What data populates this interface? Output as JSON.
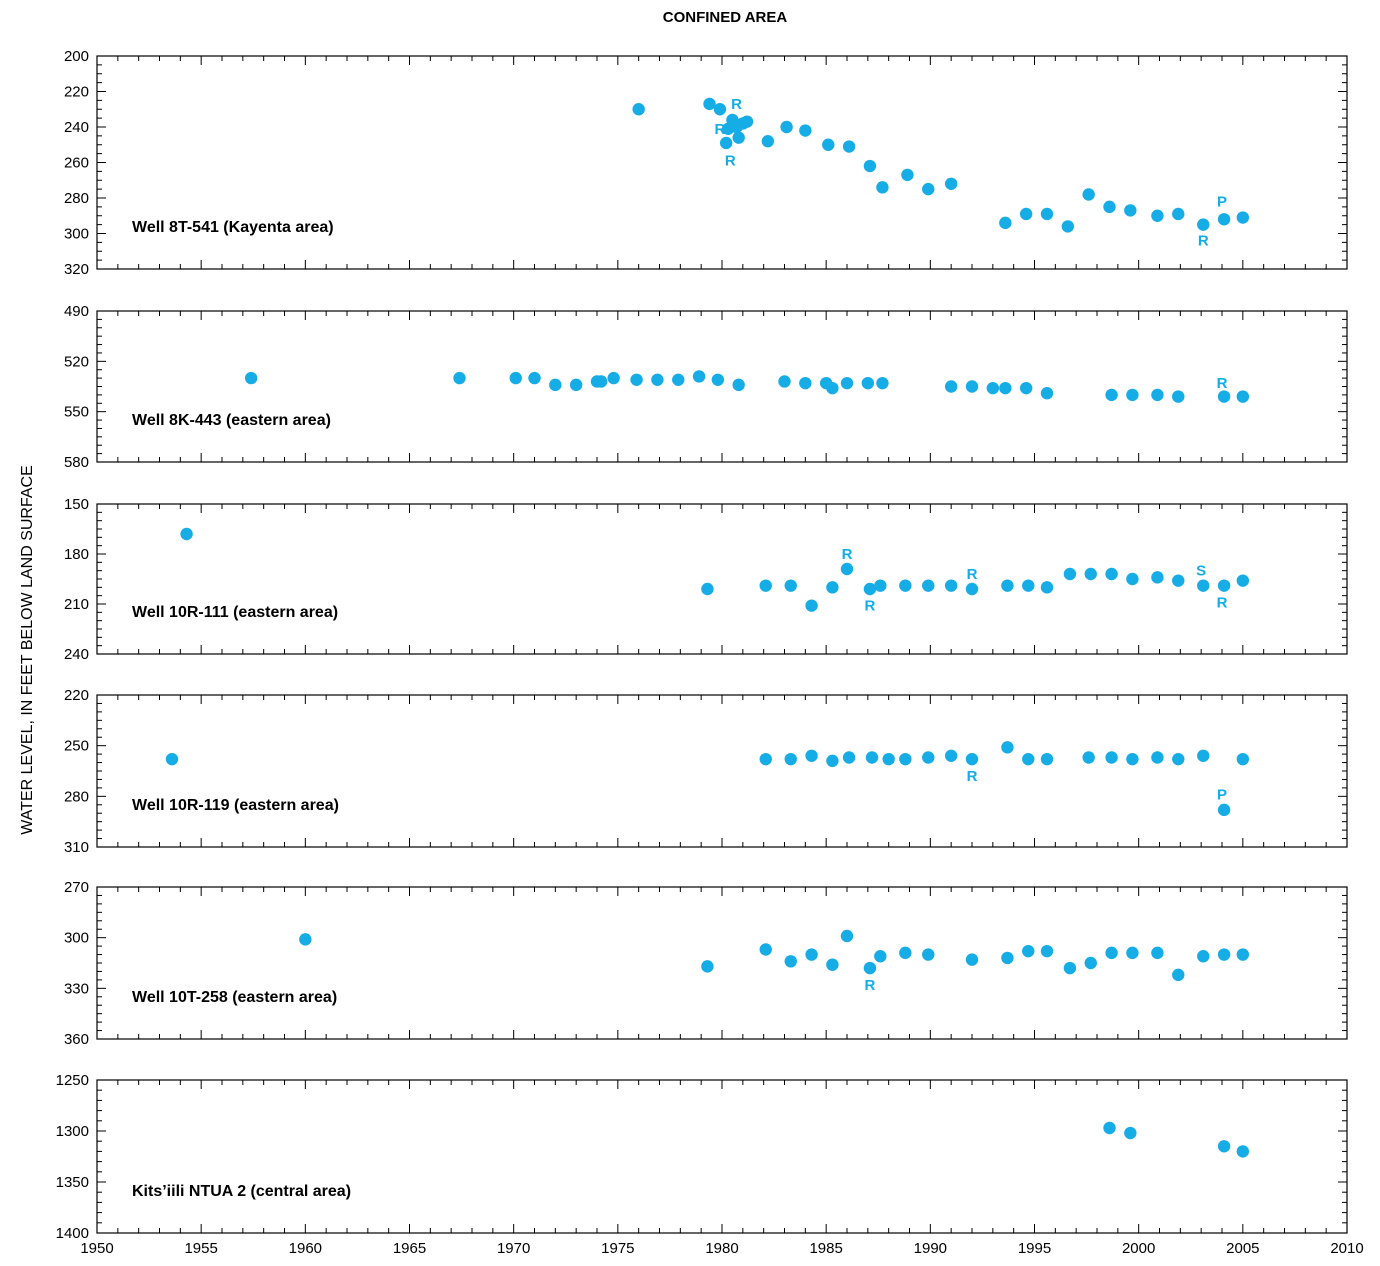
{
  "chart_data": {
    "type": "scatter",
    "title": "CONFINED AREA",
    "ylabel": "WATER LEVEL, IN FEET BELOW LAND SURFACE",
    "xlabel": "",
    "xlim": [
      1950,
      2010
    ],
    "xticks": [
      1950,
      1955,
      1960,
      1965,
      1970,
      1975,
      1980,
      1985,
      1990,
      1995,
      2000,
      2005,
      2010
    ],
    "xminor_step": 1,
    "y_inverted": true,
    "grid": false,
    "marker_color": "#16ADE6",
    "annotation_color": "#16ADE6",
    "panels": [
      {
        "label": "Well 8T-541 (Kayenta area)",
        "ylim": [
          200,
          320
        ],
        "yticks": [
          200,
          220,
          240,
          260,
          280,
          300,
          320
        ],
        "yminor_step": 5,
        "points": [
          [
            1976.0,
            230
          ],
          [
            1979.4,
            227
          ],
          [
            1979.9,
            230
          ],
          [
            1980.3,
            241
          ],
          [
            1980.5,
            236
          ],
          [
            1980.2,
            249
          ],
          [
            1980.8,
            246
          ],
          [
            1980.7,
            240
          ],
          [
            1981.0,
            238
          ],
          [
            1981.2,
            237
          ],
          [
            1982.2,
            248
          ],
          [
            1983.1,
            240
          ],
          [
            1984.0,
            242
          ],
          [
            1985.1,
            250
          ],
          [
            1986.1,
            251
          ],
          [
            1987.1,
            262
          ],
          [
            1987.7,
            274
          ],
          [
            1988.9,
            267
          ],
          [
            1989.9,
            275
          ],
          [
            1991.0,
            272
          ],
          [
            1993.6,
            294
          ],
          [
            1994.6,
            289
          ],
          [
            1995.6,
            289
          ],
          [
            1996.6,
            296
          ],
          [
            1997.6,
            278
          ],
          [
            1998.6,
            285
          ],
          [
            1999.6,
            287
          ],
          [
            2000.9,
            290
          ],
          [
            2001.9,
            289
          ],
          [
            2003.1,
            295
          ],
          [
            2004.1,
            292
          ],
          [
            2005.0,
            291
          ]
        ],
        "annotations": [
          {
            "text": "R",
            "x": 1980.7,
            "y": 227
          },
          {
            "text": "R",
            "x": 1979.9,
            "y": 241
          },
          {
            "text": "R",
            "x": 1980.4,
            "y": 259
          },
          {
            "text": "P",
            "x": 2004.0,
            "y": 282
          },
          {
            "text": "R",
            "x": 2003.1,
            "y": 304
          }
        ]
      },
      {
        "label": "Well 8K-443 (eastern area)",
        "ylim": [
          490,
          580
        ],
        "yticks": [
          490,
          520,
          550,
          580
        ],
        "yminor_step": 5,
        "points": [
          [
            1957.4,
            530
          ],
          [
            1967.4,
            530
          ],
          [
            1970.1,
            530
          ],
          [
            1971.0,
            530
          ],
          [
            1972.0,
            534
          ],
          [
            1973.0,
            534
          ],
          [
            1974.0,
            532
          ],
          [
            1974.2,
            532
          ],
          [
            1974.8,
            530
          ],
          [
            1975.9,
            531
          ],
          [
            1976.9,
            531
          ],
          [
            1977.9,
            531
          ],
          [
            1978.9,
            529
          ],
          [
            1979.8,
            531
          ],
          [
            1980.8,
            534
          ],
          [
            1983.0,
            532
          ],
          [
            1984.0,
            533
          ],
          [
            1985.0,
            533
          ],
          [
            1985.3,
            536
          ],
          [
            1986.0,
            533
          ],
          [
            1987.0,
            533
          ],
          [
            1987.7,
            533
          ],
          [
            1991.0,
            535
          ],
          [
            1992.0,
            535
          ],
          [
            1993.0,
            536
          ],
          [
            1993.6,
            536
          ],
          [
            1994.6,
            536
          ],
          [
            1995.6,
            539
          ],
          [
            1998.7,
            540
          ],
          [
            1999.7,
            540
          ],
          [
            2000.9,
            540
          ],
          [
            2001.9,
            541
          ],
          [
            2004.1,
            541
          ],
          [
            2005.0,
            541
          ]
        ],
        "annotations": [
          {
            "text": "R",
            "x": 2004.0,
            "y": 533
          }
        ]
      },
      {
        "label": "Well 10R-111 (eastern area)",
        "ylim": [
          150,
          240
        ],
        "yticks": [
          150,
          180,
          210,
          240
        ],
        "yminor_step": 5,
        "points": [
          [
            1954.3,
            168
          ],
          [
            1979.3,
            201
          ],
          [
            1982.1,
            199
          ],
          [
            1983.3,
            199
          ],
          [
            1984.3,
            211
          ],
          [
            1985.3,
            200
          ],
          [
            1986.0,
            189
          ],
          [
            1987.1,
            201
          ],
          [
            1987.6,
            199
          ],
          [
            1988.8,
            199
          ],
          [
            1989.9,
            199
          ],
          [
            1991.0,
            199
          ],
          [
            1992.0,
            201
          ],
          [
            1993.7,
            199
          ],
          [
            1994.7,
            199
          ],
          [
            1995.6,
            200
          ],
          [
            1996.7,
            192
          ],
          [
            1997.7,
            192
          ],
          [
            1998.7,
            192
          ],
          [
            1999.7,
            195
          ],
          [
            2000.9,
            194
          ],
          [
            2001.9,
            196
          ],
          [
            2003.1,
            199
          ],
          [
            2004.1,
            199
          ],
          [
            2005.0,
            196
          ]
        ],
        "annotations": [
          {
            "text": "R",
            "x": 1986.0,
            "y": 180
          },
          {
            "text": "R",
            "x": 1987.1,
            "y": 211
          },
          {
            "text": "R",
            "x": 1992.0,
            "y": 192
          },
          {
            "text": "S",
            "x": 2003.0,
            "y": 190
          },
          {
            "text": "R",
            "x": 2004.0,
            "y": 209
          }
        ]
      },
      {
        "label": "Well 10R-119 (eastern area)",
        "ylim": [
          220,
          310
        ],
        "yticks": [
          220,
          250,
          280,
          310
        ],
        "yminor_step": 5,
        "points": [
          [
            1953.6,
            258
          ],
          [
            1982.1,
            258
          ],
          [
            1983.3,
            258
          ],
          [
            1984.3,
            256
          ],
          [
            1985.3,
            259
          ],
          [
            1986.1,
            257
          ],
          [
            1987.2,
            257
          ],
          [
            1988.0,
            258
          ],
          [
            1988.8,
            258
          ],
          [
            1989.9,
            257
          ],
          [
            1991.0,
            256
          ],
          [
            1992.0,
            258
          ],
          [
            1993.7,
            251
          ],
          [
            1994.7,
            258
          ],
          [
            1995.6,
            258
          ],
          [
            1997.6,
            257
          ],
          [
            1998.7,
            257
          ],
          [
            1999.7,
            258
          ],
          [
            2000.9,
            257
          ],
          [
            2001.9,
            258
          ],
          [
            2003.1,
            256
          ],
          [
            2005.0,
            258
          ],
          [
            2004.1,
            288
          ]
        ],
        "annotations": [
          {
            "text": "R",
            "x": 1992.0,
            "y": 268
          },
          {
            "text": "P",
            "x": 2004.0,
            "y": 279
          }
        ]
      },
      {
        "label": "Well 10T-258 (eastern area)",
        "ylim": [
          270,
          360
        ],
        "yticks": [
          270,
          300,
          330,
          360
        ],
        "yminor_step": 5,
        "points": [
          [
            1960.0,
            301
          ],
          [
            1979.3,
            317
          ],
          [
            1982.1,
            307
          ],
          [
            1983.3,
            314
          ],
          [
            1984.3,
            310
          ],
          [
            1985.3,
            316
          ],
          [
            1986.0,
            299
          ],
          [
            1987.1,
            318
          ],
          [
            1987.6,
            311
          ],
          [
            1988.8,
            309
          ],
          [
            1989.9,
            310
          ],
          [
            1992.0,
            313
          ],
          [
            1993.7,
            312
          ],
          [
            1994.7,
            308
          ],
          [
            1995.6,
            308
          ],
          [
            1996.7,
            318
          ],
          [
            1997.7,
            315
          ],
          [
            1998.7,
            309
          ],
          [
            1999.7,
            309
          ],
          [
            2000.9,
            309
          ],
          [
            2001.9,
            322
          ],
          [
            2003.1,
            311
          ],
          [
            2004.1,
            310
          ],
          [
            2005.0,
            310
          ]
        ],
        "annotations": [
          {
            "text": "R",
            "x": 1987.1,
            "y": 328
          }
        ]
      },
      {
        "label": "Kits’iili NTUA 2 (central area)",
        "ylim": [
          1250,
          1400
        ],
        "yticks": [
          1250,
          1300,
          1350,
          1400
        ],
        "yminor_step": 10,
        "points": [
          [
            1998.6,
            1297
          ],
          [
            1999.6,
            1302
          ],
          [
            2004.1,
            1315
          ],
          [
            2005.0,
            1320
          ]
        ],
        "annotations": []
      }
    ]
  }
}
